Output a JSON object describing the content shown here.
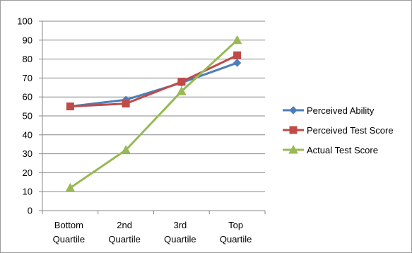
{
  "chart_data": {
    "type": "line",
    "title": "",
    "xlabel": "",
    "ylabel": "",
    "categories": [
      [
        "Bottom",
        "Quartile"
      ],
      [
        "2nd",
        "Quartile"
      ],
      [
        "3rd",
        "Quartile"
      ],
      [
        "Top",
        "Quartile"
      ]
    ],
    "ylim": [
      0,
      100
    ],
    "y_ticks": [
      "0",
      "10",
      "20",
      "30",
      "40",
      "50",
      "60",
      "70",
      "80",
      "90",
      "100"
    ],
    "grid": true,
    "legend_position": "right",
    "series": [
      {
        "name": "Perceived Ability",
        "values": [
          55,
          58.5,
          67.5,
          78
        ],
        "color": "#4a7ebb",
        "marker": "diamond"
      },
      {
        "name": "Perceived Test Score",
        "values": [
          55,
          56.5,
          68,
          82
        ],
        "color": "#be4b48",
        "marker": "square"
      },
      {
        "name": "Actual Test Score",
        "values": [
          12,
          32,
          63,
          90
        ],
        "color": "#98b954",
        "marker": "triangle"
      }
    ]
  }
}
